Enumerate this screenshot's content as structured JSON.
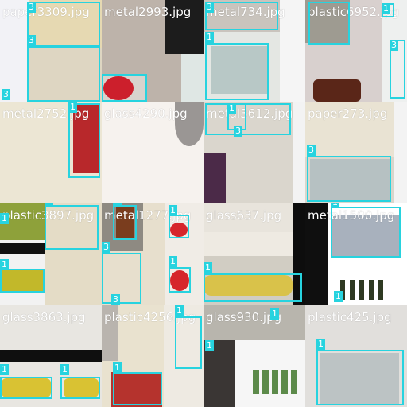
{
  "mosaic": {
    "tiles": [
      {
        "filename": "paper3309.jpg"
      },
      {
        "filename": "metal2993.jpg"
      },
      {
        "filename": "metal734.jpg"
      },
      {
        "filename": "plastic6952.jpg"
      },
      {
        "filename": "metal2752.jpg"
      },
      {
        "filename": "glass4290.jpg"
      },
      {
        "filename": "metal3612.jpg"
      },
      {
        "filename": "paper273.jpg"
      },
      {
        "filename": "plastic3897.jpg"
      },
      {
        "filename": "metal1277.jpg"
      },
      {
        "filename": "glass637.jpg"
      },
      {
        "filename": "metal1500.jpg"
      },
      {
        "filename": "glass3863.jpg"
      },
      {
        "filename": "plastic4256.jpg"
      },
      {
        "filename": "glass930.jpg"
      },
      {
        "filename": "plastic425.jpg"
      }
    ],
    "box_color": "#27d3df",
    "class_ids": [
      "1",
      "3"
    ]
  }
}
